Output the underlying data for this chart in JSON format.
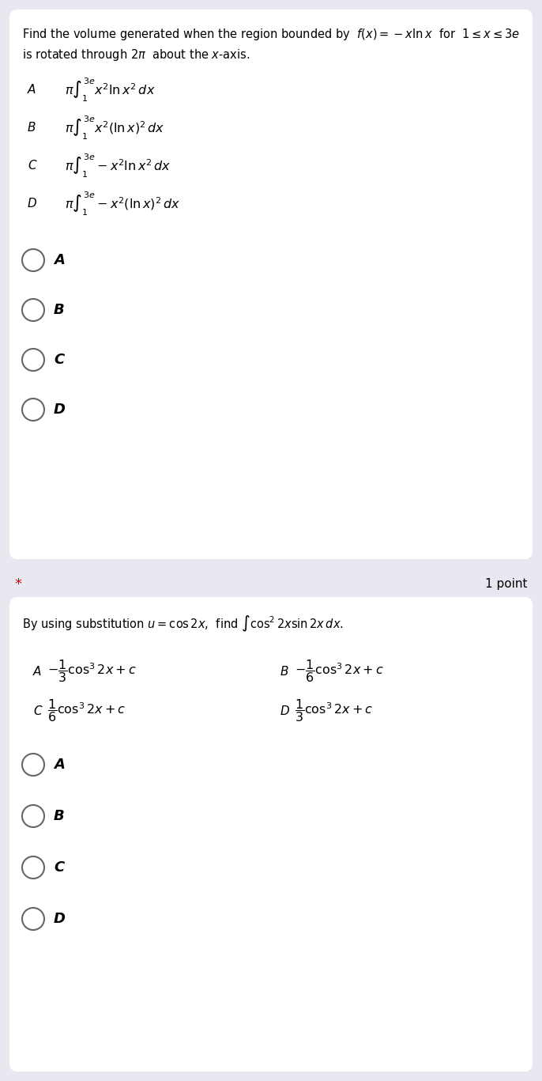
{
  "bg_color": "#e8e8f0",
  "card_color": "#ffffff",
  "text_color": "#000000",
  "q1": {
    "question_line1": "Find the volume generated when the region bounded by  $f(x)=-x\\ln x$  for  $1\\leq x\\leq 3e$",
    "question_line2": "is rotated through $2\\pi$  about the $x$-axis.",
    "options": [
      "$\\pi\\int_1^{3e} x^2 \\ln x^2\\, dx$",
      "$\\pi\\int_1^{3e} x^2 (\\ln x)^2\\, dx$",
      "$\\pi\\int_1^{3e} -x^2 \\ln x^2\\, dx$",
      "$\\pi\\int_1^{3e} -x^2 (\\ln x)^2\\, dx$"
    ],
    "option_labels": [
      "A",
      "B",
      "C",
      "D"
    ],
    "radio_labels": [
      "A",
      "B",
      "C",
      "D"
    ]
  },
  "separator": {
    "star": "*",
    "points": "1 point"
  },
  "q2": {
    "question": "By using substitution $u=\\cos 2x$,  find $\\int \\cos^2 2x \\sin 2x\\, dx$.",
    "options_left": [
      "$-\\dfrac{1}{3}\\cos^3 2x+c$",
      "$\\dfrac{1}{6}\\cos^3 2x+c$"
    ],
    "options_right": [
      "$-\\dfrac{1}{6}\\cos^3 2x+c$",
      "$\\dfrac{1}{3}\\cos^3 2x+c$"
    ],
    "labels_left": [
      "A",
      "C"
    ],
    "labels_right": [
      "B",
      "D"
    ],
    "radio_labels": [
      "A",
      "B",
      "C",
      "D"
    ]
  }
}
